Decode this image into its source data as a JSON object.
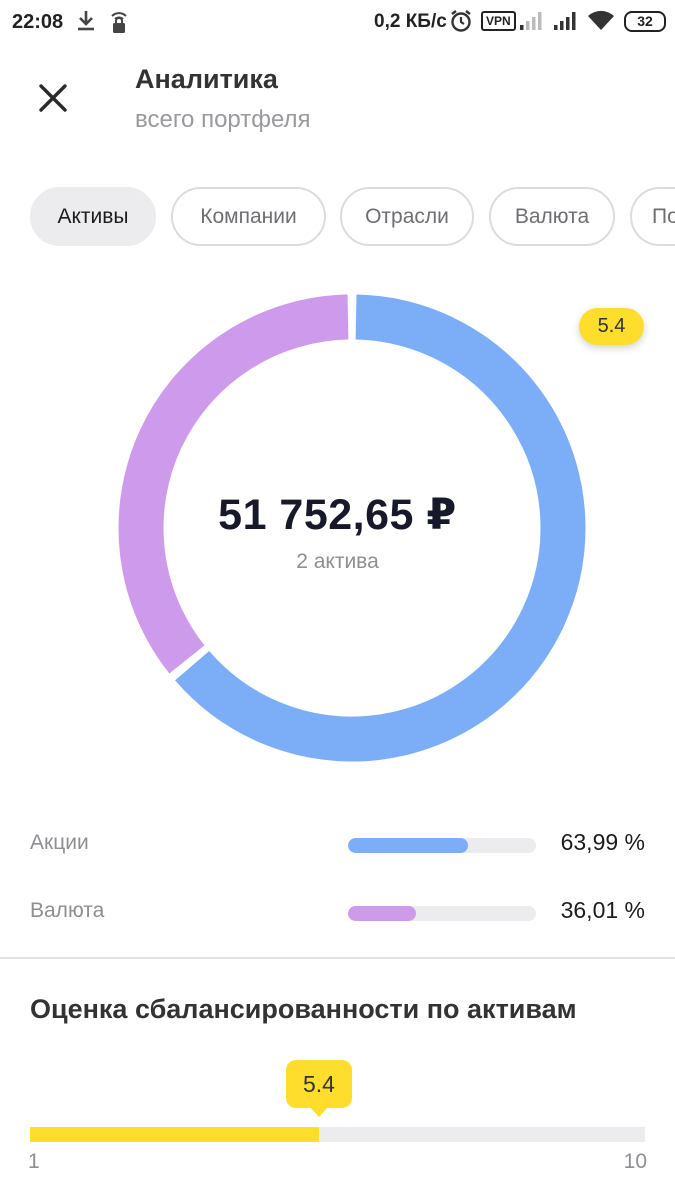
{
  "status_bar": {
    "time": "22:08",
    "speed": "0,2 КБ/с",
    "vpn": "VPN",
    "battery": "32",
    "icons": [
      "download-icon",
      "lock-wifi-icon",
      "alarm-icon",
      "signal-icon",
      "signal-icon",
      "wifi-icon",
      "battery-icon"
    ]
  },
  "header": {
    "title": "Аналитика",
    "subtitle": "всего портфеля",
    "close_icon": "close-icon"
  },
  "tabs": [
    {
      "label": "Активы",
      "active": true
    },
    {
      "label": "Компании",
      "active": false
    },
    {
      "label": "Отрасли",
      "active": false
    },
    {
      "label": "Валюта",
      "active": false
    },
    {
      "label": "По",
      "active": false
    }
  ],
  "donut": {
    "total": "51 752,65 ₽",
    "count_label": "2 актива",
    "score_badge": "5.4"
  },
  "chart_data": {
    "type": "pie",
    "title": "",
    "categories": [
      "Акции",
      "Валюта"
    ],
    "values": [
      63.99,
      36.01
    ],
    "colors": [
      "#7caef7",
      "#cd9aec"
    ]
  },
  "allocation": [
    {
      "label": "Акции",
      "value": "63,99 %",
      "percent": 63.99,
      "color": "#7caef7"
    },
    {
      "label": "Валюта",
      "value": "36,01 %",
      "percent": 36.01,
      "color": "#cd9aec"
    }
  ],
  "balance": {
    "title": "Оценка сбалансированности по активам",
    "score": "5.4",
    "score_value": 5.4,
    "min": "1",
    "max": "10",
    "min_value": 1,
    "max_value": 10,
    "color": "#ffdd2d"
  }
}
